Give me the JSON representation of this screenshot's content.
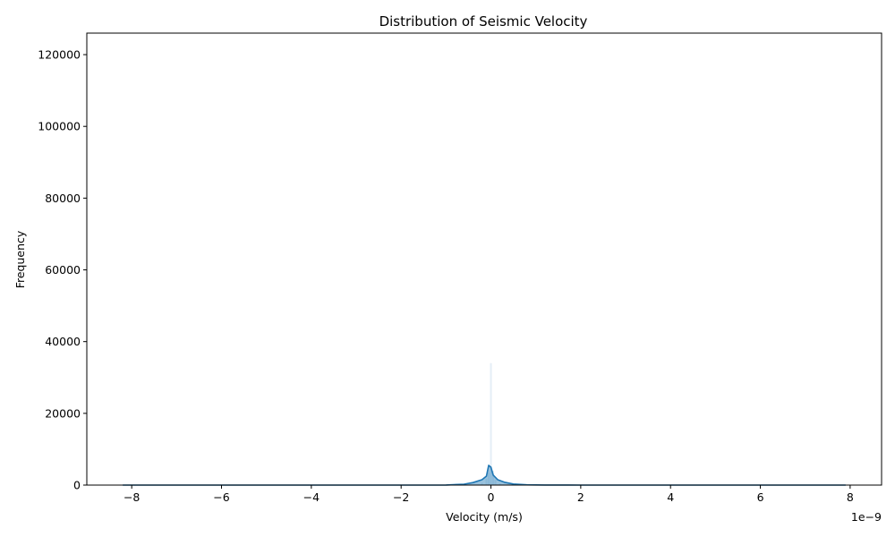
{
  "chart_data": {
    "type": "area",
    "title": "Distribution of Seismic Velocity",
    "xlabel": "Velocity (m/s)",
    "ylabel": "Frequency",
    "x_offset_label": "1e−9",
    "xlim": [
      -9.0,
      8.7
    ],
    "ylim": [
      0,
      126000
    ],
    "xticks": [
      -8,
      -6,
      -4,
      -2,
      0,
      2,
      4,
      6,
      8
    ],
    "xtick_labels": [
      "−8",
      "−6",
      "−4",
      "−2",
      "0",
      "2",
      "4",
      "6",
      "8"
    ],
    "yticks": [
      0,
      20000,
      40000,
      60000,
      80000,
      100000,
      120000
    ],
    "ytick_labels": [
      "0",
      "20000",
      "40000",
      "60000",
      "80000",
      "100000",
      "120000"
    ],
    "grid": false,
    "legend": "none",
    "colors": {
      "line": "#1f77b4",
      "fill": "#1f77b4",
      "bars": "#1f77b4"
    },
    "series": [
      {
        "kind": "kde",
        "x": [
          -8.2,
          -6.0,
          -4.0,
          -2.0,
          -1.0,
          -0.6,
          -0.4,
          -0.2,
          -0.1,
          -0.05,
          0.0,
          0.05,
          0.15,
          0.3,
          0.5,
          0.8,
          1.2,
          2.0,
          4.0,
          6.0,
          7.9
        ],
        "y": [
          0,
          0,
          0,
          0,
          20,
          250,
          700,
          1500,
          2500,
          5500,
          5000,
          2800,
          1500,
          800,
          300,
          80,
          20,
          0,
          0,
          0,
          0
        ]
      },
      {
        "kind": "histogram",
        "x": [
          -0.2,
          -0.1,
          -0.05,
          0.0,
          0.05,
          0.1,
          0.2
        ],
        "y": [
          600,
          1800,
          3500,
          34000,
          4000,
          1500,
          500
        ]
      }
    ]
  }
}
